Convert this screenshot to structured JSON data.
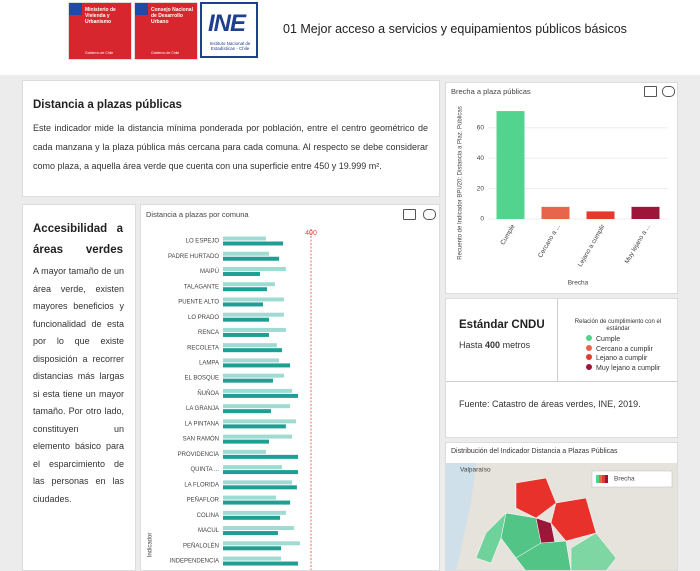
{
  "header": {
    "title": "01 Mejor acceso a servicios y equipamientos públicos básicos",
    "logos": [
      {
        "name": "Ministerio de Vivienda y Urbanismo",
        "sub": "Gobierno de Chile"
      },
      {
        "name": "Consejo Nacional de Desarrollo Urbano",
        "sub": "Gobierno de Chile"
      },
      {
        "name": "INE",
        "sub": "Instituto Nacional de Estadísticas - Chile"
      }
    ]
  },
  "intro": {
    "heading": "Distancia a plazas públicas",
    "text": "Este indicador mide la distancia mínima ponderada por población, entre el centro geométrico de cada manzana y la plaza pública más cercana para cada comuna. Al respecto se debe considerar como plaza, a aquella área verde que cuenta con una superficie entre 450 y 19.999 m²."
  },
  "side": {
    "heading": "Accesibilidad a áreas verdes",
    "text": "A mayor tamaño de un área verde, existen mayores beneficios y funcionalidad de esta por lo que existe disposición a recorrer distancias más largas si esta tiene un mayor tamaño. Por otro lado, constituyen un elemento básico para el esparcimiento de las personas en las ciudades."
  },
  "chart_data": [
    {
      "type": "bar",
      "title": "Brecha a plaza públicas",
      "y_label": "Recuento de Indicador BPU20: Distancia a Plaz. Públicas",
      "x_label": "Brecha",
      "categories": [
        "Cumple",
        "Cercano a ...",
        "Lejano a cumplir",
        "Muy lejano a ..."
      ],
      "values": [
        71,
        8,
        5,
        8
      ],
      "colors": [
        "#52d38e",
        "#e8654b",
        "#e43a2b",
        "#9c1639"
      ],
      "ylim": [
        0,
        75
      ],
      "yticks": [
        0,
        20,
        40,
        60
      ],
      "grid": true
    },
    {
      "type": "hbar",
      "title": "Distancia a plazas por comuna",
      "y_label": "Indicador",
      "categories": [
        "LO ESPEJO",
        "PADRE HURTADO",
        "MAIPÚ",
        "TALAGANTE",
        "PUENTE ALTO",
        "LO PRADO",
        "RENCA",
        "RECOLETA",
        "LAMPA",
        "EL BOSQUE",
        "ÑUÑOA",
        "LA GRANJA",
        "LA PINTANA",
        "SAN RAMÓN",
        "PROVIDENCIA",
        "QUINTA ...",
        "LA FLORIDA",
        "PEÑAFLOR",
        "COLINA",
        "MACUL",
        "PEÑALOLÉN",
        "INDEPENDENCIA"
      ],
      "series": [
        {
          "color": "#9fdbd3",
          "values": [
            195,
            209,
            286,
            236,
            277,
            277,
            286,
            245,
            255,
            277,
            314,
            305,
            332,
            314,
            195,
            268,
            314,
            241,
            286,
            323,
            350,
            264
          ]
        },
        {
          "color": "#1f9e94",
          "values": [
            273,
            255,
            168,
            200,
            182,
            209,
            209,
            268,
            305,
            227,
            341,
            218,
            286,
            209,
            341,
            341,
            336,
            305,
            259,
            250,
            264,
            341
          ]
        }
      ],
      "xlim": [
        0,
        1000
      ],
      "reference_line": 400,
      "reference_color": "#e8463a"
    }
  ],
  "standard": {
    "heading": "Estándar CNDU",
    "prefix": "Hasta",
    "limit": "400",
    "unit": "metros",
    "legend_title": [
      "Relación de cumplimiento con el",
      "estándar"
    ],
    "legend": [
      {
        "label": "Cumple",
        "color": "#52d38e"
      },
      {
        "label": "Cercano a cumplir",
        "color": "#e8654b"
      },
      {
        "label": "Lejano a cumplir",
        "color": "#e43a2b"
      },
      {
        "label": "Muy lejano a cumplir",
        "color": "#9c1639"
      }
    ],
    "source": "Fuente: Catastro de áreas verdes, INE, 2019."
  },
  "map": {
    "title": "Distribución del Indicador Distancia a Plazas Públicas",
    "place": "Valparaíso",
    "legend": "Brecha"
  }
}
